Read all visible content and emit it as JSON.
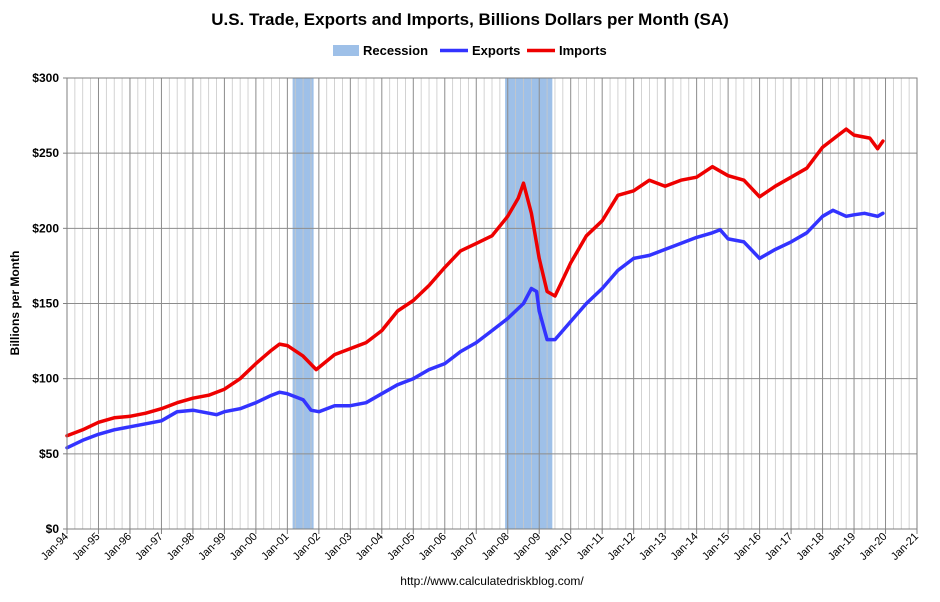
{
  "chart_data": {
    "type": "line",
    "title": "U.S. Trade, Exports and Imports, Billions Dollars per Month (SA)",
    "ylabel": "Billions per Month",
    "xlabel": "",
    "source": "http://www.calculatedriskblog.com/",
    "ylim": [
      0,
      300
    ],
    "xlim": [
      "1994-01",
      "2021-01"
    ],
    "y_ticks": [
      {
        "value": 0,
        "label": "$0"
      },
      {
        "value": 50,
        "label": "$50"
      },
      {
        "value": 100,
        "label": "$100"
      },
      {
        "value": 150,
        "label": "$150"
      },
      {
        "value": 200,
        "label": "$200"
      },
      {
        "value": 250,
        "label": "$250"
      },
      {
        "value": 300,
        "label": "$300"
      }
    ],
    "x_ticks": [
      "Jan-94",
      "Jan-95",
      "Jan-96",
      "Jan-97",
      "Jan-98",
      "Jan-99",
      "Jan-00",
      "Jan-01",
      "Jan-02",
      "Jan-03",
      "Jan-04",
      "Jan-05",
      "Jan-06",
      "Jan-07",
      "Jan-08",
      "Jan-09",
      "Jan-10",
      "Jan-11",
      "Jan-12",
      "Jan-13",
      "Jan-14",
      "Jan-15",
      "Jan-16",
      "Jan-17",
      "Jan-18",
      "Jan-19",
      "Jan-20",
      "Jan-21"
    ],
    "grid": true,
    "legend_position": "top-center",
    "legend": [
      {
        "name": "Recession",
        "color": "#9ec0e8",
        "kind": "box"
      },
      {
        "name": "Exports",
        "color": "#3333ff",
        "kind": "line"
      },
      {
        "name": "Imports",
        "color": "#ee0000",
        "kind": "line"
      }
    ],
    "recessions": [
      {
        "start": "2001-03",
        "end": "2001-11"
      },
      {
        "start": "2007-12",
        "end": "2009-06"
      }
    ],
    "series": [
      {
        "name": "Exports",
        "color": "#3333ff",
        "points": [
          [
            "1994-01",
            54
          ],
          [
            "1994-07",
            59
          ],
          [
            "1995-01",
            63
          ],
          [
            "1995-07",
            66
          ],
          [
            "1996-01",
            68
          ],
          [
            "1996-07",
            70
          ],
          [
            "1997-01",
            72
          ],
          [
            "1997-07",
            78
          ],
          [
            "1998-01",
            79
          ],
          [
            "1998-07",
            77
          ],
          [
            "1998-10",
            76
          ],
          [
            "1999-01",
            78
          ],
          [
            "1999-07",
            80
          ],
          [
            "2000-01",
            84
          ],
          [
            "2000-07",
            89
          ],
          [
            "2000-10",
            91
          ],
          [
            "2001-01",
            90
          ],
          [
            "2001-07",
            86
          ],
          [
            "2001-10",
            79
          ],
          [
            "2002-01",
            78
          ],
          [
            "2002-07",
            82
          ],
          [
            "2003-01",
            82
          ],
          [
            "2003-07",
            84
          ],
          [
            "2004-01",
            90
          ],
          [
            "2004-07",
            96
          ],
          [
            "2005-01",
            100
          ],
          [
            "2005-07",
            106
          ],
          [
            "2006-01",
            110
          ],
          [
            "2006-07",
            118
          ],
          [
            "2007-01",
            124
          ],
          [
            "2007-07",
            132
          ],
          [
            "2008-01",
            140
          ],
          [
            "2008-07",
            150
          ],
          [
            "2008-10",
            160
          ],
          [
            "2008-12",
            158
          ],
          [
            "2009-01",
            145
          ],
          [
            "2009-04",
            126
          ],
          [
            "2009-07",
            126
          ],
          [
            "2010-01",
            138
          ],
          [
            "2010-07",
            150
          ],
          [
            "2011-01",
            160
          ],
          [
            "2011-07",
            172
          ],
          [
            "2012-01",
            180
          ],
          [
            "2012-07",
            182
          ],
          [
            "2013-01",
            186
          ],
          [
            "2013-07",
            190
          ],
          [
            "2014-01",
            194
          ],
          [
            "2014-07",
            197
          ],
          [
            "2014-10",
            199
          ],
          [
            "2015-01",
            193
          ],
          [
            "2015-07",
            191
          ],
          [
            "2016-01",
            180
          ],
          [
            "2016-07",
            186
          ],
          [
            "2017-01",
            191
          ],
          [
            "2017-07",
            197
          ],
          [
            "2018-01",
            208
          ],
          [
            "2018-05",
            212
          ],
          [
            "2018-10",
            208
          ],
          [
            "2019-01",
            209
          ],
          [
            "2019-05",
            210
          ],
          [
            "2019-10",
            208
          ],
          [
            "2019-12",
            210
          ]
        ]
      },
      {
        "name": "Imports",
        "color": "#ee0000",
        "points": [
          [
            "1994-01",
            62
          ],
          [
            "1994-07",
            66
          ],
          [
            "1995-01",
            71
          ],
          [
            "1995-07",
            74
          ],
          [
            "1996-01",
            75
          ],
          [
            "1996-07",
            77
          ],
          [
            "1997-01",
            80
          ],
          [
            "1997-07",
            84
          ],
          [
            "1998-01",
            87
          ],
          [
            "1998-07",
            89
          ],
          [
            "1999-01",
            93
          ],
          [
            "1999-07",
            100
          ],
          [
            "2000-01",
            110
          ],
          [
            "2000-07",
            119
          ],
          [
            "2000-10",
            123
          ],
          [
            "2001-01",
            122
          ],
          [
            "2001-07",
            115
          ],
          [
            "2001-12",
            106
          ],
          [
            "2002-07",
            116
          ],
          [
            "2003-01",
            120
          ],
          [
            "2003-07",
            124
          ],
          [
            "2004-01",
            132
          ],
          [
            "2004-07",
            145
          ],
          [
            "2005-01",
            152
          ],
          [
            "2005-07",
            162
          ],
          [
            "2006-01",
            174
          ],
          [
            "2006-07",
            185
          ],
          [
            "2007-01",
            190
          ],
          [
            "2007-07",
            195
          ],
          [
            "2008-01",
            208
          ],
          [
            "2008-05",
            220
          ],
          [
            "2008-07",
            230
          ],
          [
            "2008-10",
            210
          ],
          [
            "2009-01",
            180
          ],
          [
            "2009-04",
            158
          ],
          [
            "2009-07",
            155
          ],
          [
            "2010-01",
            177
          ],
          [
            "2010-07",
            195
          ],
          [
            "2011-01",
            205
          ],
          [
            "2011-07",
            222
          ],
          [
            "2012-01",
            225
          ],
          [
            "2012-07",
            232
          ],
          [
            "2013-01",
            228
          ],
          [
            "2013-07",
            232
          ],
          [
            "2014-01",
            234
          ],
          [
            "2014-07",
            241
          ],
          [
            "2015-01",
            235
          ],
          [
            "2015-07",
            232
          ],
          [
            "2016-01",
            221
          ],
          [
            "2016-07",
            228
          ],
          [
            "2017-01",
            234
          ],
          [
            "2017-07",
            240
          ],
          [
            "2018-01",
            254
          ],
          [
            "2018-07",
            262
          ],
          [
            "2018-10",
            266
          ],
          [
            "2019-01",
            262
          ],
          [
            "2019-07",
            260
          ],
          [
            "2019-10",
            253
          ],
          [
            "2019-12",
            258
          ]
        ]
      }
    ]
  }
}
